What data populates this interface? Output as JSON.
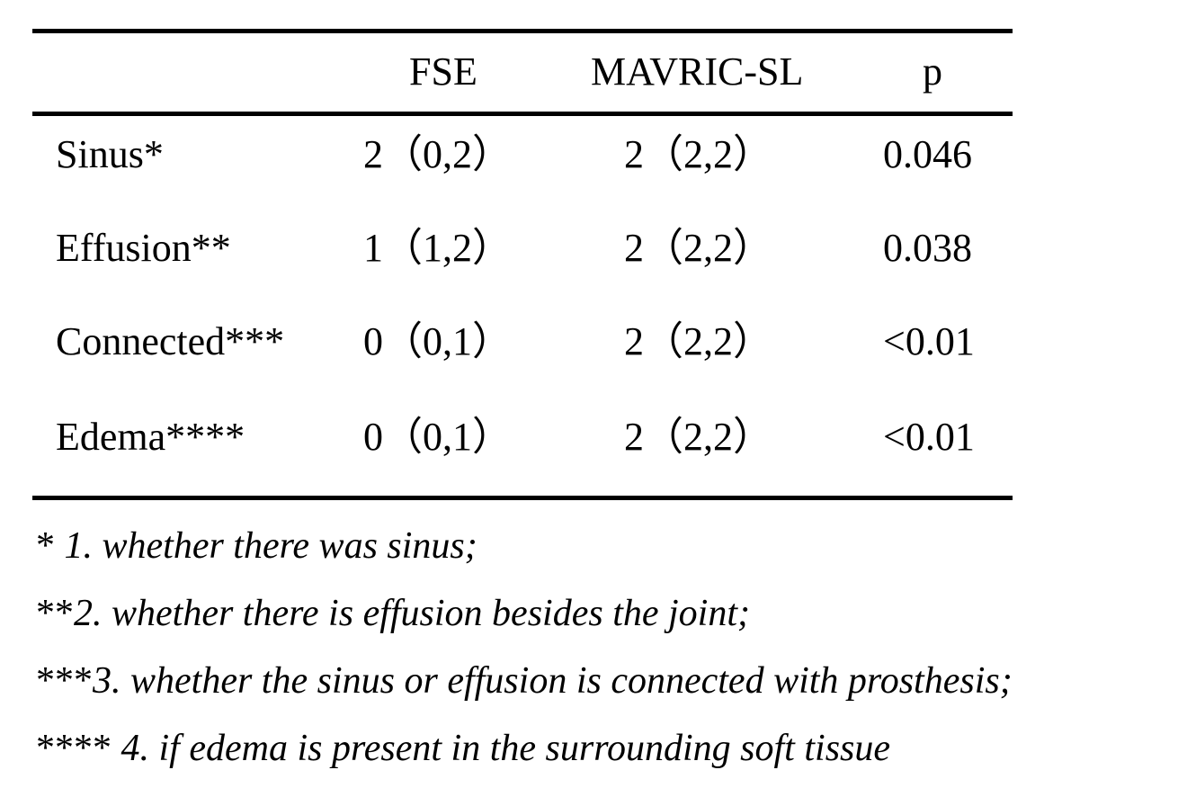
{
  "table": {
    "headers": {
      "label": "",
      "fse": "FSE",
      "mavric": "MAVRIC-SL",
      "p": "p"
    },
    "rows": [
      {
        "label": "Sinus*",
        "fse": "2（0,2）",
        "mavric": "2（2,2）",
        "p": "0.046"
      },
      {
        "label": "Effusion**",
        "fse": "1（1,2）",
        "mavric": "2（2,2）",
        "p": "0.038"
      },
      {
        "label": "Connected***",
        "fse": "0（0,1）",
        "mavric": "2（2,2）",
        "p": "<0.01"
      },
      {
        "label": "Edema****",
        "fse": "0（0,1）",
        "mavric": "2（2,2）",
        "p": "<0.01"
      }
    ]
  },
  "notes": [
    {
      "marker": "* ",
      "text": "1. whether there was sinus;"
    },
    {
      "marker": "**",
      "text": "2. whether there is effusion besides the joint;"
    },
    {
      "marker": "***",
      "text": "3. whether the sinus or effusion is connected with prosthesis;"
    },
    {
      "marker": "**** ",
      "text": "4. if edema is present in the surrounding soft tissue"
    }
  ]
}
